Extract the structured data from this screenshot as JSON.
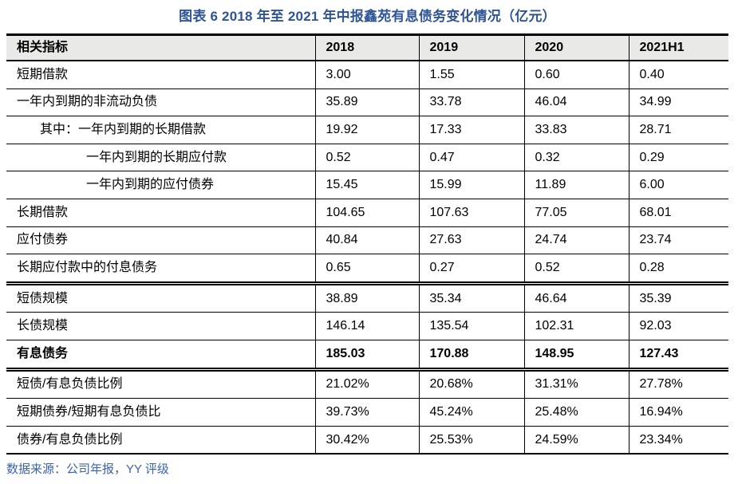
{
  "title": "图表 6 2018 年至 2021 年中报鑫苑有息债务变化情况（亿元）",
  "source_note": "数据来源：公司年报，YY 评级",
  "colors": {
    "title_blue": "#2E5496",
    "source_blue": "#3A63AE",
    "header_bg": "#E9E9E7",
    "border": "#000000"
  },
  "table": {
    "columns": [
      "相关指标",
      "2018",
      "2019",
      "2020",
      "2021H1"
    ],
    "rows": [
      {
        "label": "短期借款",
        "values": [
          "3.00",
          "1.55",
          "0.60",
          "0.40"
        ]
      },
      {
        "label": "一年内到期的非流动负债",
        "values": [
          "35.89",
          "33.78",
          "46.04",
          "34.99"
        ]
      },
      {
        "label": "其中：一年内到期的长期借款",
        "values": [
          "19.92",
          "17.33",
          "33.83",
          "28.71"
        ]
      },
      {
        "label": "一年内到期的长期应付款",
        "values": [
          "0.52",
          "0.47",
          "0.32",
          "0.29"
        ]
      },
      {
        "label": "一年内到期的应付债券",
        "values": [
          "15.45",
          "15.99",
          "11.89",
          "6.00"
        ]
      },
      {
        "label": "长期借款",
        "values": [
          "104.65",
          "107.63",
          "77.05",
          "68.01"
        ]
      },
      {
        "label": "应付债券",
        "values": [
          "40.84",
          "27.63",
          "24.74",
          "23.74"
        ]
      },
      {
        "label": "长期应付款中的付息债务",
        "values": [
          "0.65",
          "0.27",
          "0.52",
          "0.28"
        ]
      },
      {
        "label": "短债规模",
        "values": [
          "38.89",
          "35.34",
          "46.64",
          "35.39"
        ]
      },
      {
        "label": "长债规模",
        "values": [
          "146.14",
          "135.54",
          "102.31",
          "92.03"
        ]
      },
      {
        "label": "有息债务",
        "values": [
          "185.03",
          "170.88",
          "148.95",
          "127.43"
        ]
      },
      {
        "label": "短债/有息负债比例",
        "values": [
          "21.02%",
          "20.68%",
          "31.31%",
          "27.78%"
        ]
      },
      {
        "label": "短期债券/短期有息负债比",
        "values": [
          "39.73%",
          "45.24%",
          "25.48%",
          "16.94%"
        ]
      },
      {
        "label": "债券/有息负债比例",
        "values": [
          "30.42%",
          "25.53%",
          "24.59%",
          "23.34%"
        ]
      }
    ]
  }
}
